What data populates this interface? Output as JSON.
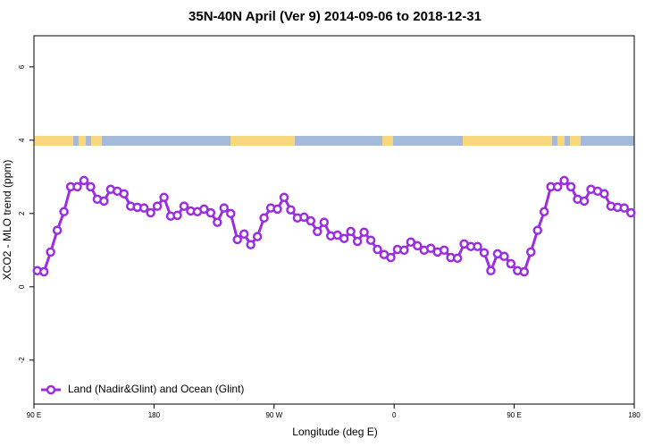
{
  "chart_data": {
    "type": "line",
    "title": "35N-40N April (Ver 9)   2014-09-06 to 2018-12-31",
    "x_label": "Longitude (deg E)",
    "y_label": "XCO2 - MLO trend (ppm)",
    "xlim": [
      90,
      540
    ],
    "ylim": [
      -3.2,
      6.85
    ],
    "xticks": [
      {
        "value": 90,
        "label": "90 E"
      },
      180,
      {
        "value": 270,
        "label": "90 W"
      },
      {
        "value": 360,
        "label": "0"
      },
      {
        "value": 450,
        "label": "90 E"
      },
      {
        "value": 540,
        "label": "180"
      }
    ],
    "yticks": [
      -2,
      0,
      2,
      4,
      6
    ],
    "legend": "bottomleft",
    "x": [
      92.5,
      97.5,
      102.5,
      107.5,
      112.5,
      117.5,
      122.5,
      127.5,
      132.5,
      137.5,
      142.5,
      147.5,
      152.5,
      157.5,
      162.5,
      167.5,
      172.5,
      177.5,
      182.5,
      187.5,
      192.5,
      197.5,
      202.5,
      207.5,
      212.5,
      217.5,
      222.5,
      227.5,
      232.5,
      237.5,
      242.5,
      247.5,
      252.5,
      257.5,
      262.5,
      267.5,
      272.5,
      277.5,
      282.5,
      287.5,
      292.5,
      297.5,
      302.5,
      307.5,
      312.5,
      317.5,
      322.5,
      327.5,
      332.5,
      337.5,
      342.5,
      347.5,
      352.5,
      357.5,
      362.5,
      367.5,
      372.5,
      377.5,
      382.5,
      387.5,
      392.5,
      397.5,
      402.5,
      407.5,
      412.5,
      417.5,
      422.5,
      427.5,
      432.5,
      437.5,
      442.5,
      447.5,
      452.5,
      457.5,
      462.5,
      467.5,
      472.5,
      477.5,
      482.5,
      487.5,
      492.5,
      497.5,
      502.5,
      507.5,
      512.5,
      517.5,
      522.5,
      527.5,
      532.5,
      537.5
    ],
    "series": [
      {
        "name": "Land (Nadir&Glint) and Ocean (Glint)",
        "color": "#9b2ee0",
        "values": [
          0.44,
          0.41,
          0.95,
          1.54,
          2.05,
          2.73,
          2.73,
          2.9,
          2.73,
          2.39,
          2.34,
          2.66,
          2.61,
          2.54,
          2.2,
          2.17,
          2.15,
          2.02,
          2.2,
          2.44,
          1.93,
          1.95,
          2.2,
          2.07,
          2.05,
          2.12,
          2.02,
          1.76,
          2.15,
          2.0,
          1.29,
          1.44,
          1.15,
          1.37,
          1.88,
          2.15,
          2.12,
          2.44,
          2.1,
          1.88,
          1.9,
          1.8,
          1.51,
          1.76,
          1.39,
          1.41,
          1.32,
          1.51,
          1.24,
          1.49,
          1.27,
          1.02,
          0.88,
          0.8,
          1.02,
          1.0,
          1.22,
          1.12,
          1.0,
          1.05,
          0.95,
          1.0,
          0.8,
          0.78,
          1.17,
          1.1,
          1.1,
          0.93,
          0.44,
          0.9,
          0.83,
          0.63,
          0.44,
          0.41,
          0.95,
          1.54,
          2.05,
          2.73,
          2.73,
          2.9,
          2.73,
          2.39,
          2.34,
          2.66,
          2.61,
          2.54,
          2.2,
          2.17,
          2.15,
          2.02
        ]
      }
    ]
  }
}
